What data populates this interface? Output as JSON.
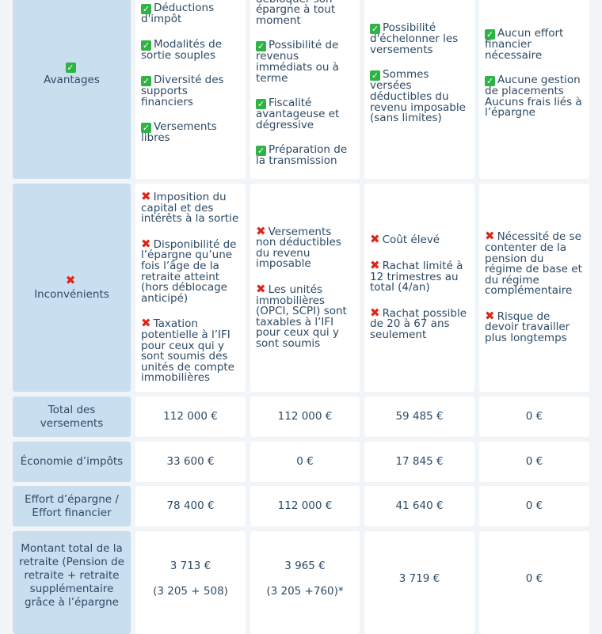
{
  "icons": {
    "check": "check-mark-button-icon",
    "cross": "cross-mark-icon"
  },
  "colors": {
    "label_bg": "#c9dff0",
    "text": "#2d4a64",
    "check": "#2fb344",
    "cross": "#e0241a"
  },
  "rows": {
    "avantages": {
      "label": "Avantages",
      "col1": [
        "Déductions d'impôt",
        "Modalités de sortie souples",
        "Diversité des supports financiers",
        "Versements libres"
      ],
      "col2_partial": "débloquer son épargne à tout moment",
      "col2": [
        "Possibilité de revenus immédiats ou à terme",
        "Fiscalité avantageuse et dégressive",
        "Préparation de la transmission"
      ],
      "col3": [
        "Possibilité d'échelonner les versements",
        "Sommes versées déductibles du revenu imposable (sans limites)"
      ],
      "col4": [
        "Aucun effort financier nécessaire",
        "Aucune gestion de placements Aucuns frais liés à l’épargne"
      ]
    },
    "inconvenients": {
      "label": "Inconvénients",
      "col1": [
        "Imposition du capital et des intérêts à la sortie",
        "Disponibilité de l’épargne qu’une fois l’âge de la retraite atteint (hors déblocage anticipé)",
        "Taxation potentielle à l’IFI pour ceux qui y sont soumis des unités de compte immobilières"
      ],
      "col2": [
        "Versements non déductibles du revenu imposable",
        "Les unités immobilières (OPCI, SCPI) sont taxables à l’IFI pour ceux qui y sont soumis"
      ],
      "col3": [
        "Coût élevé",
        "Rachat limité à 12 trimestres au total (4/an)",
        "Rachat possible de 20 à 67 ans seulement"
      ],
      "col4": [
        "Nécessité de se contenter de la pension du régime de base et du régime complémentaire",
        "Risque de devoir travailler plus longtemps"
      ]
    },
    "total": {
      "label": "Total des versements",
      "values": [
        "112 000 €",
        "112 000 €",
        "59 485 €",
        "0 €"
      ]
    },
    "economie": {
      "label": "Économie d’impôts",
      "values": [
        "33 600 €",
        "0 €",
        "17 845 €",
        "0 €"
      ]
    },
    "effort": {
      "label": "Effort d’épargne / Effort financier",
      "values": [
        "78 400 €",
        "112 000 €",
        "41 640 €",
        "0 €"
      ]
    },
    "montant": {
      "label": "Montant total de la retraite (Pension de retraite + retraite supplémentaire grâce à l’épargne",
      "values": [
        "3 713 €",
        "3 965 €",
        "3 719 €",
        "0 €"
      ],
      "details": [
        "(3 205 + 508)",
        "(3 205 +760)*"
      ]
    }
  }
}
